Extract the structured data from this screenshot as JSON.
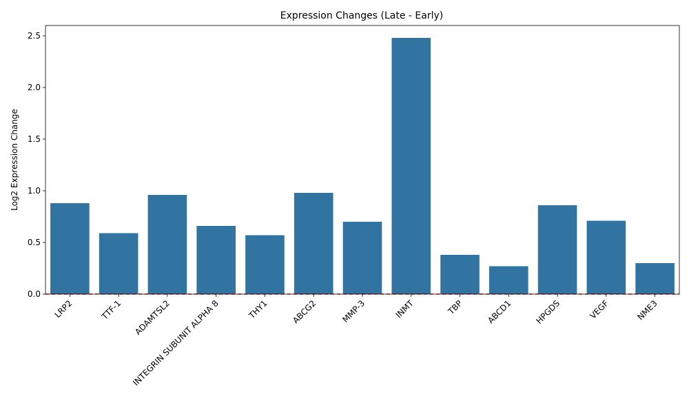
{
  "chart_data": {
    "type": "bar",
    "title": "Expression Changes (Late - Early)",
    "xlabel": "",
    "ylabel": "Log2 Expression Change",
    "categories": [
      "LRP2",
      "TTF-1",
      "ADAMTSL2",
      "INTEGRIN SUBUNIT ALPHA 8",
      "THY1",
      "ABCG2",
      "MMP-3",
      "INMT",
      "TBP",
      "ABCD1",
      "HPGDS",
      "VEGF",
      "NME3"
    ],
    "values": [
      0.88,
      0.59,
      0.96,
      0.66,
      0.57,
      0.98,
      0.7,
      2.48,
      0.38,
      0.27,
      0.86,
      0.71,
      0.3
    ],
    "ylim": [
      0,
      2.6
    ],
    "yticks": [
      0.0,
      0.5,
      1.0,
      1.5,
      2.0,
      2.5
    ],
    "ytick_labels": [
      "0.0",
      "0.5",
      "1.0",
      "1.5",
      "2.0",
      "2.5"
    ],
    "reference_line": {
      "y": 0,
      "style": "dashed",
      "color": "#d62728"
    },
    "bar_color": "#3274a1",
    "grid": false,
    "legend": "none"
  }
}
